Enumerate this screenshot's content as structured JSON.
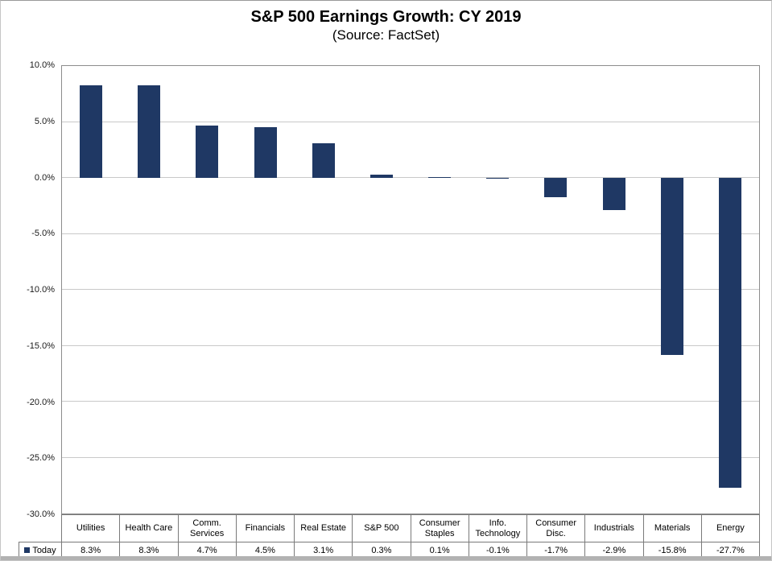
{
  "chart_data": {
    "type": "bar",
    "title": "S&P 500 Earnings Growth: CY 2019",
    "subtitle": "(Source: FactSet)",
    "categories": [
      "Utilities",
      "Health Care",
      "Comm. Services",
      "Financials",
      "Real Estate",
      "S&P 500",
      "Consumer Staples",
      "Info. Technology",
      "Consumer Disc.",
      "Industrials",
      "Materials",
      "Energy"
    ],
    "series": [
      {
        "name": "Today",
        "values": [
          8.3,
          8.3,
          4.7,
          4.5,
          3.1,
          0.3,
          0.1,
          -0.1,
          -1.7,
          -2.9,
          -15.8,
          -27.7
        ]
      }
    ],
    "value_labels": [
      "8.3%",
      "8.3%",
      "4.7%",
      "4.5%",
      "3.1%",
      "0.3%",
      "0.1%",
      "-0.1%",
      "-1.7%",
      "-2.9%",
      "-15.8%",
      "-27.7%"
    ],
    "xlabel": "",
    "ylabel": "",
    "ylim": [
      -30,
      10
    ],
    "yticks": [
      10,
      5,
      0,
      -5,
      -10,
      -15,
      -20,
      -25,
      -30
    ],
    "ytick_labels": [
      "10.0%",
      "5.0%",
      "0.0%",
      "-5.0%",
      "-10.0%",
      "-15.0%",
      "-20.0%",
      "-25.0%",
      "-30.0%"
    ],
    "grid": true,
    "legend_position": "bottom-left-table",
    "bar_color": "#1f3864",
    "gridline_color": "#c9c9c9"
  }
}
